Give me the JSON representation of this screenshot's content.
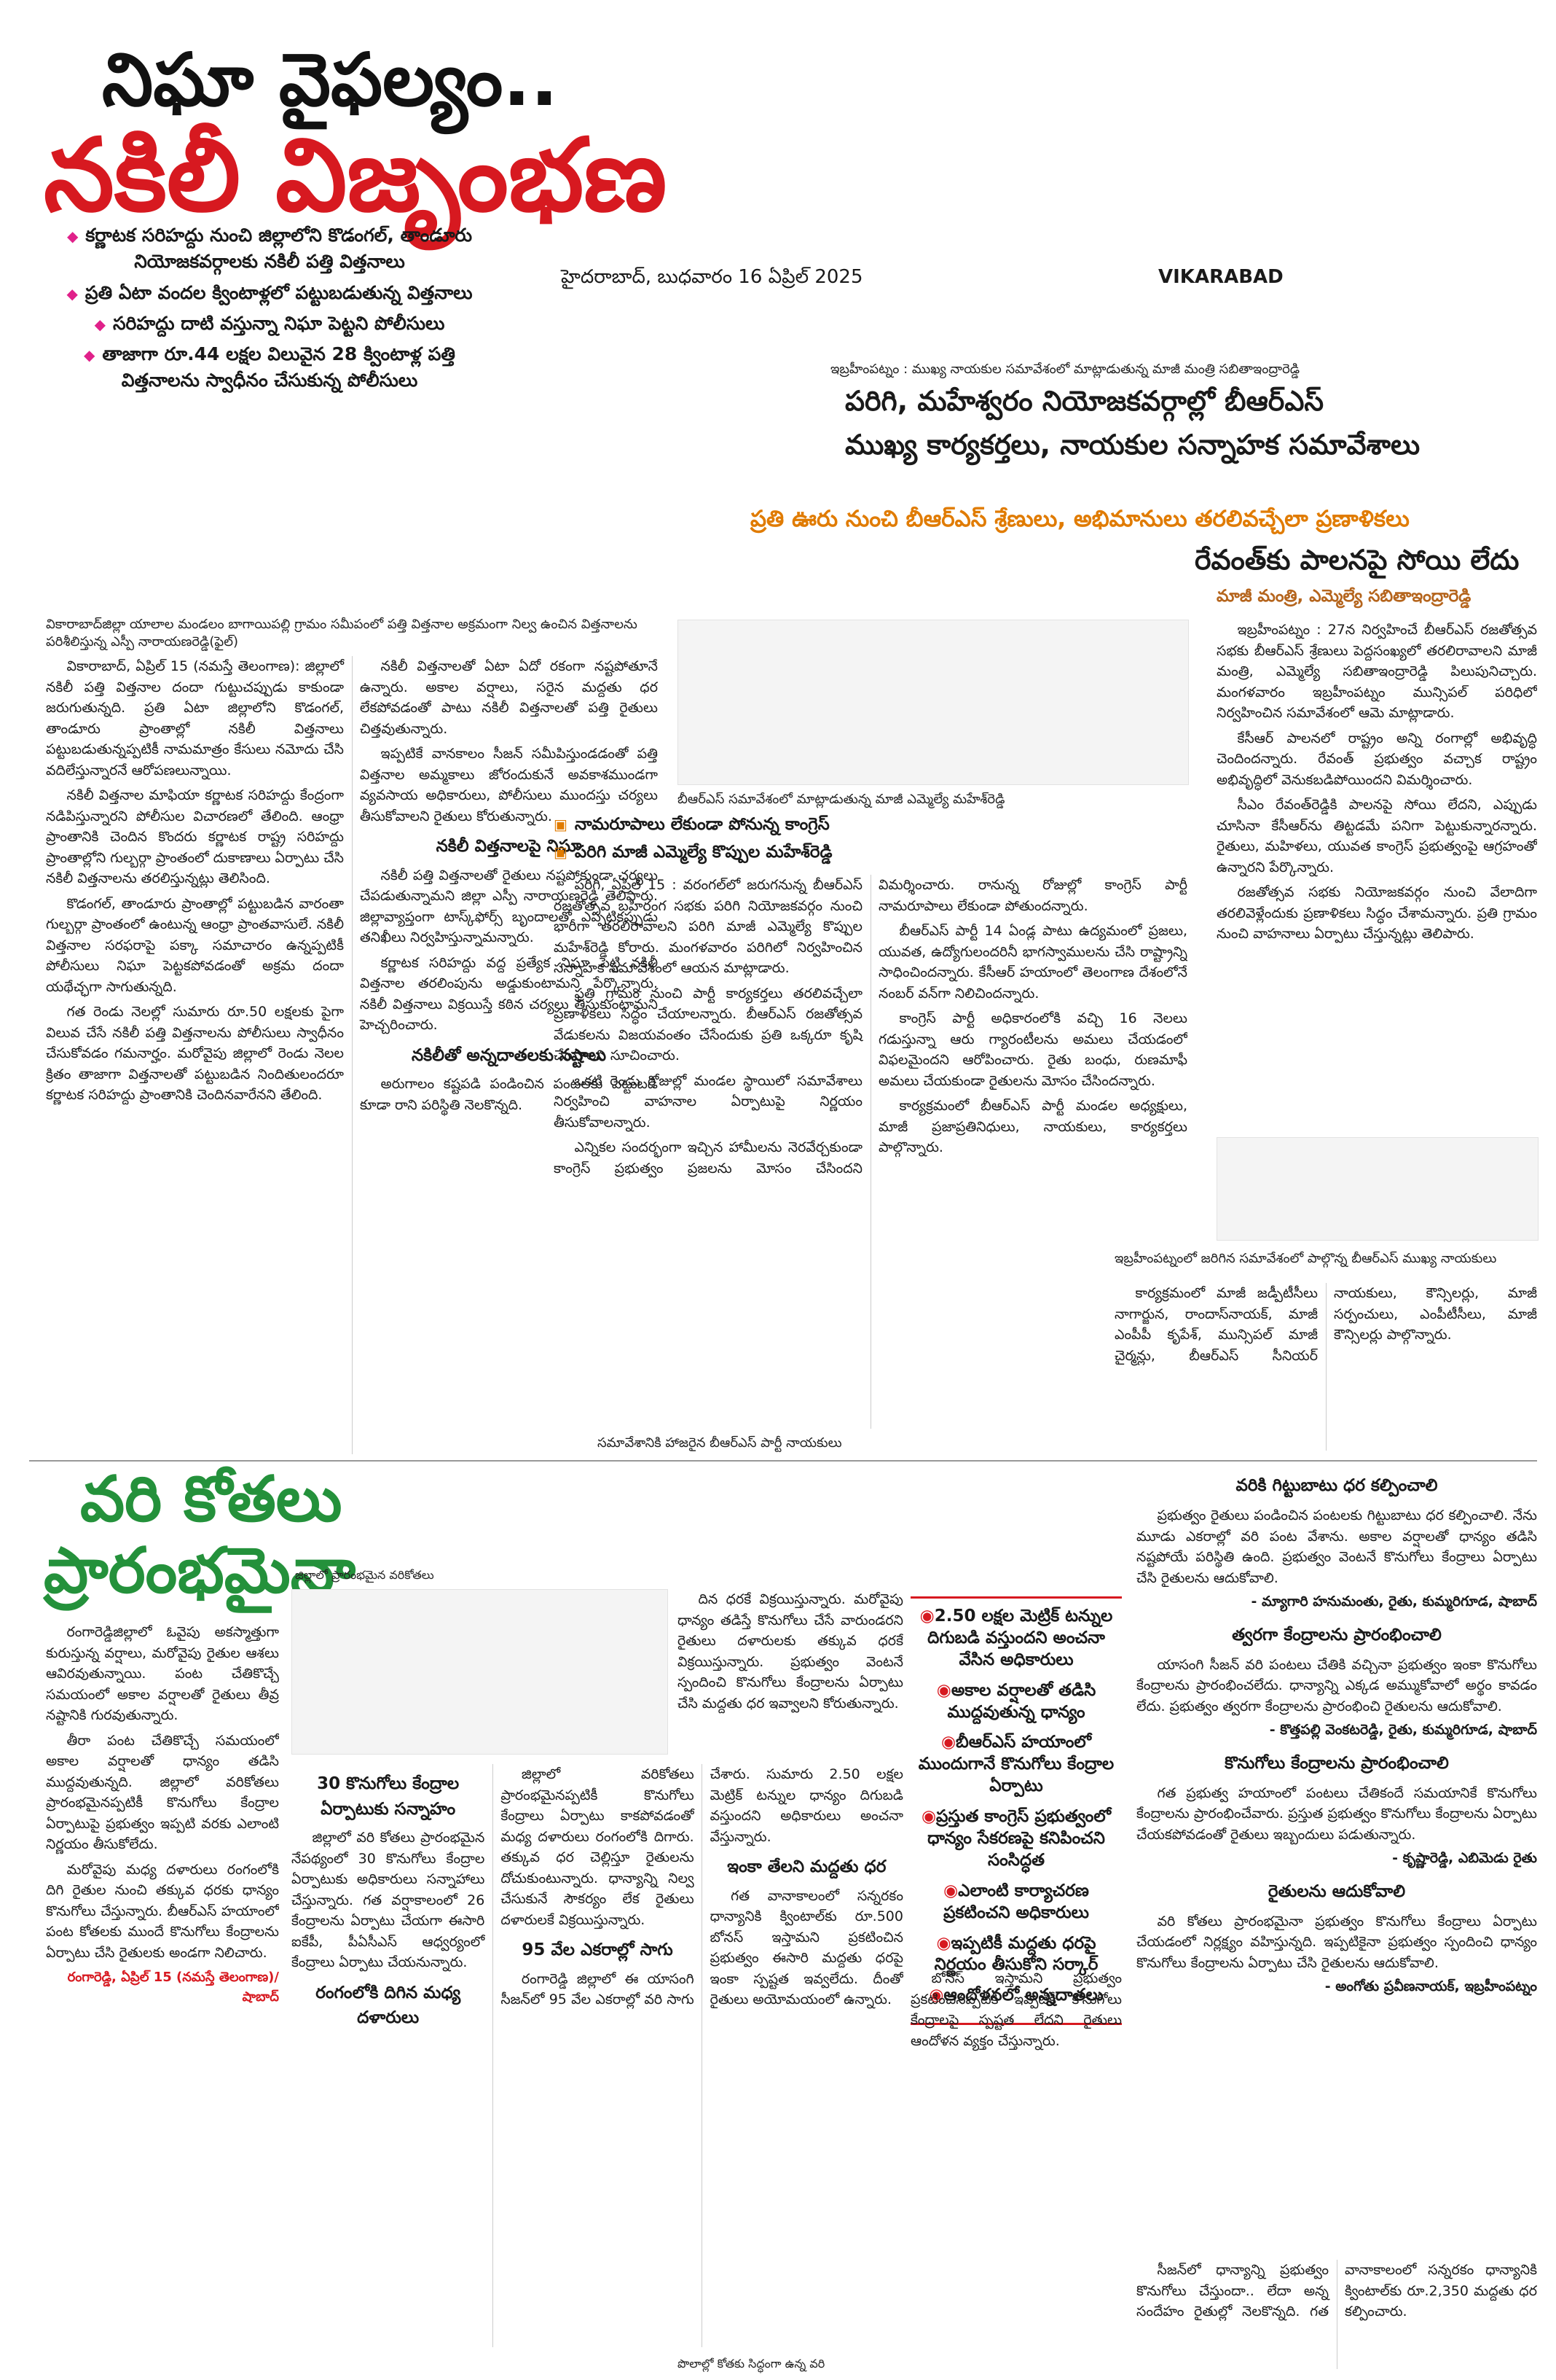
{
  "header": {
    "headline1": "నిఘా వైఫల్యం..",
    "headline2": "నకిలీ విజృంభణ",
    "bullets": [
      "కర్ణాటక సరిహద్దు నుంచి జిల్లాలోని కొడంగల్, తాండూరు నియోజకవర్గాలకు నకిలీ పత్తి విత్తనాలు",
      "ప్రతి ఏటా వందల క్వింటాళ్లలో పట్టుబడుతున్న విత్తనాలు",
      "సరిహద్దు దాటి వస్తున్నా నిఘా పెట్టని పోలీసులు",
      "తాజాగా రూ.44 లక్షల విలువైన 28 క్వింటాళ్ల పత్తి విత్తనాలను స్వాధీనం చేసుకున్న పోలీసులు"
    ],
    "dateline": "హైదరాబాద్, బుధవారం 16 ఏప్రిల్ 2025",
    "edition": "VIKARABAD"
  },
  "seeds": {
    "caption": "వికారాబాద్‌జిల్లా యాలాల మండలం బాగాయిపల్లి గ్రామం సమీపంలో పత్తి విత్తనాల అక్రమంగా నిల్వ ఉంచిన విత్తనాలను పరిశీలిస్తున్న ఎస్పీ నారాయణరెడ్డి(ఫైల్)",
    "body": [
      "వికారాబాద్, ఏప్రిల్ 15 (నమస్తే తెలంగాణ): జిల్లాలో నకిలీ పత్తి విత్తనాల దందా గుట్టుచప్పుడు కాకుండా జరుగుతున్నది. ప్రతి ఏటా జిల్లాలోని కొడంగల్, తాండూరు ప్రాంతాల్లో నకిలీ విత్తనాలు పట్టుబడుతున్నప్పటికీ నామమాత్రం కేసులు నమోదు చేసి వదిలేస్తున్నారనే ఆరోపణలున్నాయి.",
      "నకిలీ విత్తనాల మాఫియా కర్ణాటక సరిహద్దు కేంద్రంగా నడిపిస్తున్నారని పోలీసుల విచారణలో తేలింది. ఆంధ్రా ప్రాంతానికి చెందిన కొందరు కర్ణాటక రాష్ట్ర సరిహద్దు ప్రాంతాల్లోని గుల్బర్గా ప్రాంతంలో దుకాణాలు ఏర్పాటు చేసి నకిలీ విత్తనాలను తరలిస్తున్నట్లు తెలిసింది.",
      "కొడంగల్, తాండూరు ప్రాంతాల్లో పట్టుబడిన వారంతా గుల్బర్గా ప్రాంతంలో ఉంటున్న ఆంధ్రా ప్రాంతవాసులే. నకిలీ విత్తనాల సరఫరాపై పక్కా సమాచారం ఉన్నప్పటికీ పోలీసులు నిఘా పెట్టకపోవడంతో అక్రమ దందా యథేచ్ఛగా సాగుతున్నది.",
      "గత రెండు నెలల్లో సుమారు రూ.50 లక్షలకు పైగా విలువ చేసే నకిలీ పత్తి విత్తనాలను పోలీసులు స్వాధీనం చేసుకోవడం గమనార్హం. మరోవైపు జిల్లాలో రెండు నెలల క్రితం తాజాగా విత్తనాలతో పట్టుబడిన నిందితులందరూ కర్ణాటక సరిహద్దు ప్రాంతానికి చెందినవారేనని తేలింది.",
      "నకిలీ విత్తనాలతో ఏటా ఏదో రకంగా నష్టపోతూనే ఉన్నారు. అకాల వర్షాలు, సరైన మద్దతు ధర లేకపోవడంతో పాటు నకిలీ విత్తనాలతో పత్తి రైతులు చిత్తవుతున్నారు.",
      "ఇప్పటికే వానకాలం సీజన్ సమీపిస్తుండడంతో పత్తి విత్తనాల అమ్మకాలు జోరందుకునే అవకాశముండగా వ్యవసాయ అధికారులు, పోలీసులు ముందస్తు చర్యలు తీసుకోవాలని రైతులు కోరుతున్నారు."
    ],
    "subhead1": "నకిలీ విత్తనాలపై నిఘా",
    "body2": [
      "నకిలీ పత్తి విత్తనాలతో రైతులు నష్టపోకుండా చర్యలు చేపడుతున్నామని జిల్లా ఎస్పీ నారాయణరెడ్డి తెలిపారు. జిల్లావ్యాప్తంగా టాస్క్‌ఫోర్స్ బృందాలతో ఎప్పటికప్పుడు తనిఖీలు నిర్వహిస్తున్నామన్నారు.",
      "కర్ణాటక సరిహద్దు వద్ద ప్రత్యేక నిఘా పెట్టి నకిలీ విత్తనాల తరలింపును అడ్డుకుంటామని పేర్కొన్నారు. నకిలీ విత్తనాలు విక్రయిస్తే కఠిన చర్యలు తీసుకుంటామని హెచ్చరించారు."
    ],
    "subhead2": "నకిలీతో అన్నదాతలకు నష్టాలు",
    "body3": [
      "అరుగాలం కష్టపడి పండించిన పంటలకు పెట్టుబడి కూడా రాని పరిస్థితి నెలకొన్నది."
    ]
  },
  "brs": {
    "caption": "బీఆర్ఎస్ సమావేశంలో మాట్లాడుతున్న మాజీ ఎమ్మెల్యే మహేశ్‌రెడ్డి",
    "bullets": [
      "నామరూపాలు లేకుండా పోనున్న కాంగ్రెస్",
      "పరిగి మాజీ ఎమ్మెల్యే కొప్పుల మహేశ్‌రెడ్డి"
    ],
    "body": [
      "పరిగి, ఏప్రిల్ 15 : వరంగల్‌లో జరుగనున్న బీఆర్ఎస్ రజతోత్సవ బహిరంగ సభకు పరిగి నియోజకవర్గం నుంచి భారీగా తరలిరావాలని పరిగి మాజీ ఎమ్మెల్యే కొప్పుల మహేశ్‌రెడ్డి కోరారు. మంగళవారం పరిగిలో నిర్వహించిన సన్నాహక సమావేశంలో ఆయన మాట్లాడారు.",
      "ప్రతి గ్రామం నుంచి పార్టీ కార్యకర్తలు తరలివచ్చేలా ప్రణాళికలు సిద్ధం చేయాలన్నారు. బీఆర్ఎస్ రజతోత్సవ వేడుకలను విజయవంతం చేసేందుకు ప్రతి ఒక్కరూ కృషి చేయాలని సూచించారు.",
      "ఒకటి రెండు రోజుల్లో మండల స్థాయిలో సమావేశాలు నిర్వహించి వాహనాల ఏర్పాటుపై నిర్ణయం తీసుకోవాలన్నారు.",
      "ఎన్నికల సందర్భంగా ఇచ్చిన హామీలను నెరవేర్చకుండా కాంగ్రెస్ ప్రభుత్వం ప్రజలను మోసం చేసిందని విమర్శించారు. రానున్న రోజుల్లో కాంగ్రెస్ పార్టీ నామరూపాలు లేకుండా పోతుందన్నారు.",
      "బీఆర్ఎస్ పార్టీ 14 ఏండ్ల పాటు ఉద్యమంలో ప్రజలు, యువత, ఉద్యోగులందరినీ భాగస్వాములను చేసి రాష్ట్రాన్ని సాధించిందన్నారు. కేసీఆర్ హయాంలో తెలంగాణ దేశంలోనే నంబర్ వన్‌గా నిలిచిందన్నారు.",
      "కాంగ్రెస్ పార్టీ అధికారంలోకి వచ్చి 16 నెలలు గడుస్తున్నా ఆరు గ్యారంటీలను అమలు చేయడంలో విఫలమైందని ఆరోపించారు. రైతు బంధు, రుణమాఫీ అమలు చేయకుండా రైతులను మోసం చేసిందన్నారు.",
      "కార్యక్రమంలో బీఆర్ఎస్ పార్టీ మండల అధ్యక్షులు, మాజీ ప్రజాప్రతినిధులు, నాయకులు, కార్యకర్తలు పాల్గొన్నారు."
    ],
    "caption2": "సమావేశానికి హాజరైన బీఆర్ఎస్ పార్టీ నాయకులు"
  },
  "sabitha": {
    "top_caption": "ఇబ్రహీంపట్నం : ముఖ్య నాయకుల సమావేశంలో మాట్లాడుతున్న మాజీ మంత్రి సబితాఇంద్రారెడ్డి",
    "headline_line1": "పరిగి, మహేశ్వరం నియోజకవర్గాల్లో బీఆర్ఎస్",
    "headline_line2": "ముఖ్య కార్యకర్తలు, నాయకుల సన్నాహక సమావేశాలు",
    "strip": "ప్రతి ఊరు నుంచి బీఆర్ఎస్ శ్రేణులు, అభిమానులు తరలివచ్చేలా ప్రణాళికలు",
    "headline": "రేవంత్‌కు పాలనపై సోయి లేదు",
    "byline": "మాజీ మంత్రి, ఎమ్మెల్యే సబితాఇంద్రారెడ్డి",
    "body": [
      "ఇబ్రహీంపట్నం : 27న నిర్వహించే బీఆర్ఎస్ రజతోత్సవ సభకు బీఆర్ఎస్ శ్రేణులు పెద్దసంఖ్యలో తరలిరావాలని మాజీ మంత్రి, ఎమ్మెల్యే సబితాఇంద్రారెడ్డి పిలుపునిచ్చారు. మంగళవారం ఇబ్రహీంపట్నం మున్సిపల్ పరిధిలో నిర్వహించిన సమావేశంలో ఆమె మాట్లాడారు.",
      "కేసీఆర్ పాలనలో రాష్ట్రం అన్ని రంగాల్లో అభివృద్ధి చెందిందన్నారు. రేవంత్ ప్రభుత్వం వచ్చాక రాష్ట్రం అభివృద్ధిలో వెనుకబడిపోయిందని విమర్శించారు.",
      "సీఎం రేవంత్‌రెడ్డికి పాలనపై సోయి లేదని, ఎప్పుడు చూసినా కేసీఆర్‌ను తిట్టడమే పనిగా పెట్టుకున్నారన్నారు. రైతులు, మహిళలు, యువత కాంగ్రెస్ ప్రభుత్వంపై ఆగ్రహంతో ఉన్నారని పేర్కొన్నారు.",
      "రజతోత్సవ సభకు నియోజకవర్గం నుంచి వేలాదిగా తరలివెళ్లేందుకు ప్రణాళికలు సిద్ధం చేశామన్నారు. ప్రతి గ్రామం నుంచి వాహనాలు ఏర్పాటు చేస్తున్నట్లు తెలిపారు."
    ],
    "caption": "ఇబ్రహీంపట్నంలో జరిగిన సమావేశంలో పాల్గొన్న బీఆర్ఎస్ ముఖ్య నాయకులు",
    "body2": [
      "కార్యక్రమంలో మాజీ జడ్పీటీసీలు నాగార్జున, రాందాస్‌నాయక్, మాజీ ఎంపీపీ కృపేశ్, మున్సిపల్ మాజీ చైర్మన్లు, బీఆర్ఎస్ సీనియర్ నాయకులు, కౌన్సిలర్లు, మాజీ సర్పంచులు, ఎంపీటీసీలు, మాజీ కౌన్సిలర్లు పాల్గొన్నారు."
    ]
  },
  "paddy": {
    "headline_line1": "వరి కోతలు",
    "headline_line2": "ప్రారంభమైనా",
    "photo_caption": "జిల్లాలో ప్రారంభమైన వరికోతలు",
    "lead": [
      "రంగారెడ్డిజిల్లాలో ఓవైపు అకస్మాత్తుగా కురుస్తున్న వర్షాలు, మరోవైపు రైతుల ఆశలు ఆవిరవుతున్నాయి. పంట చేతికొచ్చే సమయంలో అకాల వర్షాలతో రైతులు తీవ్ర నష్టానికి గురవుతున్నారు.",
      "తీరా పంట చేతికొచ్చే సమయంలో అకాల వర్షాలతో ధాన్యం తడిసి ముద్దవుతున్నది. జిల్లాలో వరికోతలు ప్రారంభమైనప్పటికీ కొనుగోలు కేంద్రాల ఏర్పాటుపై ప్రభుత్వం ఇప్పటి వరకు ఎలాంటి నిర్ణయం తీసుకోలేదు.",
      "మరోవైపు మధ్య దళారులు రంగంలోకి దిగి రైతుల నుంచి తక్కువ ధరకు ధాన్యం కొనుగోలు చేస్తున్నారు. బీఆర్ఎస్ హయాంలో పంట కోతలకు ముందే కొనుగోలు కేంద్రాలను ఏర్పాటు చేసి రైతులకు అండగా నిలిచారు."
    ],
    "byline": "రంగారెడ్డి, ఏప్రిల్ 15 (నమస్తే తెలంగాణ)/షాబాద్",
    "top_column": [
      "దిన ధరకే విక్రయిస్తున్నారు. మరోవైపు ధాన్యం తడిస్తే కొనుగోలు చేసే వారుండరని రైతులు దళారులకు తక్కువ ధరకే విక్రయిస్తున్నారు. ప్రభుత్వం వెంటనే స్పందించి కొనుగోలు కేంద్రాలను ఏర్పాటు చేసి మద్దతు ధర ఇవ్వాలని కోరుతున్నారు."
    ],
    "sections": [
      {
        "title": "30 కొనుగోలు కేంద్రాల ఏర్పాటుకు సన్నాహం",
        "body": [
          "జిల్లాలో వరి కోతలు ప్రారంభమైన నేపథ్యంలో 30 కొనుగోలు కేంద్రాల ఏర్పాటుకు అధికారులు సన్నాహాలు చేస్తున్నారు. గత వర్షాకాలంలో 26 కేంద్రాలను ఏర్పాటు చేయగా ఈసారి ఐకేపీ, పీఏసీఎస్ ఆధ్వర్యంలో కేంద్రాలు ఏర్పాటు చేయనున్నారు."
        ]
      },
      {
        "title": "రంగంలోకి దిగిన మధ్య దళారులు",
        "body": [
          "జిల్లాలో వరికోతలు ప్రారంభమైనప్పటికీ కొనుగోలు కేంద్రాలు ఏర్పాటు కాకపోవడంతో మధ్య దళారులు రంగంలోకి దిగారు. తక్కువ ధర చెల్లిస్తూ రైతులను దోచుకుంటున్నారు. ధాన్యాన్ని నిల్వ చేసుకునే సౌకర్యం లేక రైతులు దళారులకే విక్రయిస్తున్నారు."
        ]
      },
      {
        "title": "95 వేల ఎకరాల్లో సాగు",
        "body": [
          "రంగారెడ్డి జిల్లాలో ఈ యాసంగి సీజన్‌లో 95 వేల ఎకరాల్లో వరి సాగు చేశారు. సుమారు 2.50 లక్షల మెట్రిక్ టన్నుల ధాన్యం దిగుబడి వస్తుందని అధికారులు అంచనా వేస్తున్నారు."
        ]
      },
      {
        "title": "ఇంకా తేలని మద్దతు ధర",
        "body": [
          "గత వానాకాలంలో సన్నరకం ధాన్యానికి క్వింటాల్‌కు రూ.500 బోనస్ ఇస్తామని ప్రకటించిన ప్రభుత్వం ఈసారి మద్దతు ధరపై ఇంకా స్పష్టత ఇవ్వలేదు. దీంతో రైతులు అయోమయంలో ఉన్నారు."
        ]
      }
    ],
    "box_bullets": [
      "2.50 లక్షల మెట్రిక్ టన్నుల దిగుబడి వస్తుందని అంచనా వేసిన అధికారులు",
      "అకాల వర్షాలతో తడిసి ముద్దవుతున్న ధాన్యం",
      "బీఆర్ఎస్ హయాంలో ముందుగానే కొనుగోలు కేంద్రాల ఏర్పాటు",
      "ప్రస్తుత కాంగ్రెస్ ప్రభుత్వంలో ధాన్యం సేకరణపై కనిపించని సంసిద్ధత",
      "ఎలాంటి కార్యాచరణ ప్రకటించని అధికారులు",
      "ఇప్పటికీ మద్దతు ధరపై నిర్ణయం తీసుకోని సర్కార్",
      "ఆందోళనలో అన్నదాతలు"
    ],
    "box_body": [
      "బోనస్ ఇస్తామని ప్రభుత్వం ప్రకటించినప్పటికీ ఇప్పటికీ కొనుగోలు కేంద్రాలపై స్పష్టత లేదని రైతులు ఆందోళన వ్యక్తం చేస్తున్నారు."
    ],
    "bottom_caption": "పొలాల్లో కోతకు సిద్ధంగా ఉన్న వరి",
    "quotes": [
      {
        "title": "వరికి గిట్టుబాటు ధర కల్పించాలి",
        "body": "ప్రభుత్వం రైతులు పండించిన పంటలకు గిట్టుబాటు ధర కల్పించాలి. నేను మూడు ఎకరాల్లో వరి పంట వేశాను. అకాల వర్షాలతో ధాన్యం తడిసి నష్టపోయే పరిస్థితి ఉంది. ప్రభుత్వం వెంటనే కొనుగోలు కేంద్రాలు ఏర్పాటు చేసి రైతులను ఆదుకోవాలి.",
        "attribution": "- మ్యాగారి హనుమంతు, రైతు, కుమ్మరిగూడ, షాబాద్"
      },
      {
        "title": "త్వరగా కేంద్రాలను ప్రారంభించాలి",
        "body": "యాసంగి సీజన్ వరి పంటలు చేతికి వచ్చినా ప్రభుత్వం ఇంకా కొనుగోలు కేంద్రాలను ప్రారంభించలేదు. ధాన్యాన్ని ఎక్కడ అమ్ముకోవాలో అర్థం కావడం లేదు. ప్రభుత్వం త్వరగా కేంద్రాలను ప్రారంభించి రైతులను ఆదుకోవాలి.",
        "attribution": "- కొత్తపల్లి వెంకటరెడ్డి, రైతు, కుమ్మరిగూడ, షాబాద్"
      },
      {
        "title": "కొనుగోలు కేంద్రాలను ప్రారంభించాలి",
        "body": "గత ప్రభుత్వ హయాంలో పంటలు చేతికందే సమయానికే కొనుగోలు కేంద్రాలను ప్రారంభించేవారు. ప్రస్తుత ప్రభుత్వం కొనుగోలు కేంద్రాలను ఏర్పాటు చేయకపోవడంతో రైతులు ఇబ్బందులు పడుతున్నారు.",
        "attribution": "- కృష్ణారెడ్డి, ఎబిమెడు రైతు"
      },
      {
        "title": "రైతులను ఆదుకోవాలి",
        "body": "వరి కోతలు ప్రారంభమైనా ప్రభుత్వం కొనుగోలు కేంద్రాలు ఏర్పాటు చేయడంలో నిర్లక్ష్యం వహిస్తున్నది. ఇప్పటికైనా ప్రభుత్వం స్పందించి ధాన్యం కొనుగోలు కేంద్రాలను ఏర్పాటు చేసి రైతులను ఆదుకోవాలి.",
        "attribution": "- అంగోతు ప్రవీణనాయక్, ఇబ్రహీంపట్నం"
      }
    ],
    "closing": [
      "సీజన్‌లో ధాన్యాన్ని ప్రభుత్వం కొనుగోలు చేస్తుందా.. లేదా అన్న సందేహం రైతుల్లో నెలకొన్నది. గత వానాకాలంలో సన్నరకం ధాన్యానికి క్వింటాల్‌కు రూ.2,350 మద్దతు ధర కల్పించారు."
    ]
  }
}
